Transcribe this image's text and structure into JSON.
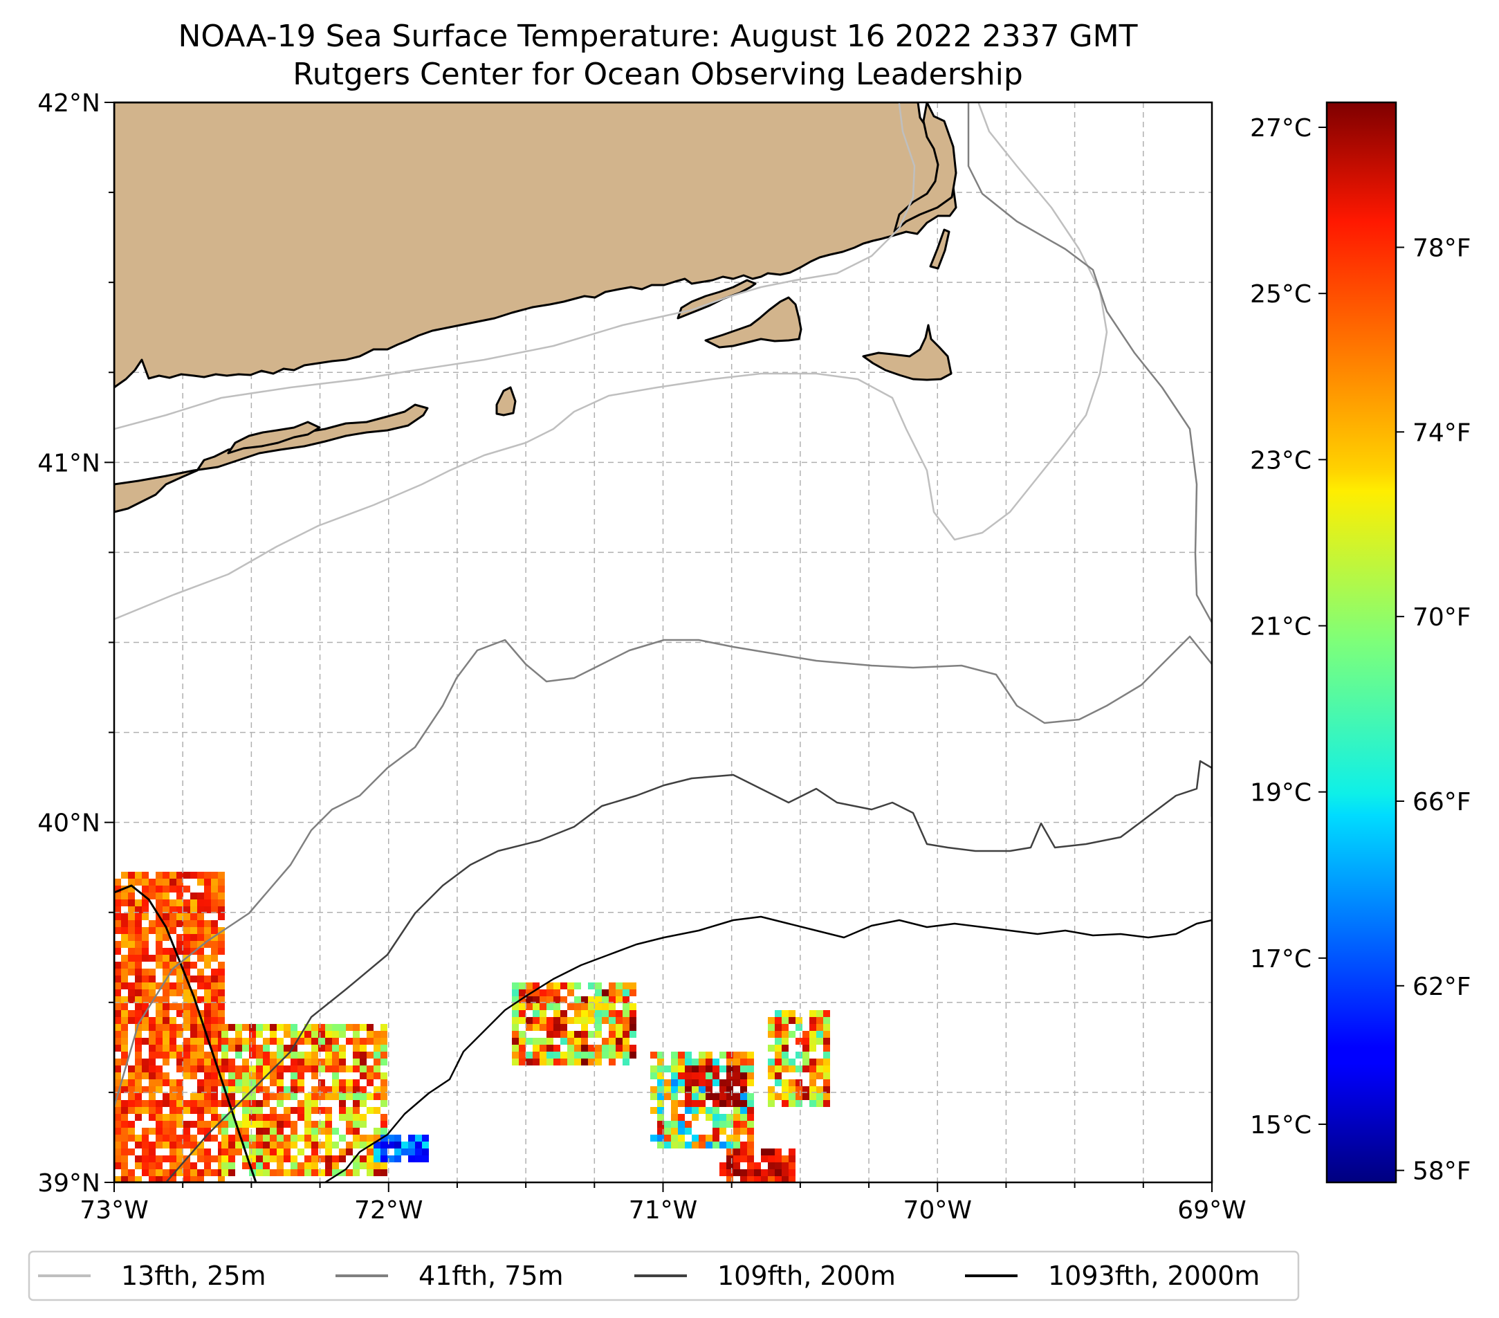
{
  "title": {
    "line1": "NOAA-19 Sea Surface Temperature: August 16 2022 2337 GMT",
    "line2": "Rutgers Center for Ocean Observing Leadership"
  },
  "map": {
    "extent": {
      "lon_min": -73,
      "lon_max": -69,
      "lat_min": 39,
      "lat_max": 42
    },
    "land_color": "#d2b48c",
    "gridlines": true,
    "lon_ticks": [
      {
        "value": -73,
        "label": "73°W"
      },
      {
        "value": -72,
        "label": "72°W"
      },
      {
        "value": -71,
        "label": "71°W"
      },
      {
        "value": -70,
        "label": "70°W"
      },
      {
        "value": -69,
        "label": "69°W"
      }
    ],
    "lat_ticks": [
      {
        "value": 42,
        "label": "42°N"
      },
      {
        "value": 41,
        "label": "41°N"
      },
      {
        "value": 40,
        "label": "40°N"
      },
      {
        "value": 39,
        "label": "39°N"
      }
    ]
  },
  "colorbar": {
    "colormap": "jet",
    "range_c": [
      14.3,
      27.3
    ],
    "celsius_ticks": [
      {
        "value": 15,
        "label": "15°C"
      },
      {
        "value": 17,
        "label": "17°C"
      },
      {
        "value": 19,
        "label": "19°C"
      },
      {
        "value": 21,
        "label": "21°C"
      },
      {
        "value": 23,
        "label": "23°C"
      },
      {
        "value": 25,
        "label": "25°C"
      },
      {
        "value": 27,
        "label": "27°C"
      }
    ],
    "fahrenheit_ticks": [
      {
        "value": 58,
        "label": "58°F"
      },
      {
        "value": 62,
        "label": "62°F"
      },
      {
        "value": 66,
        "label": "66°F"
      },
      {
        "value": 70,
        "label": "70°F"
      },
      {
        "value": 74,
        "label": "74°F"
      },
      {
        "value": 78,
        "label": "78°F"
      }
    ]
  },
  "legend": {
    "position": "bottom",
    "entries": [
      {
        "label": "13fth, 25m",
        "color": "#bfbfbf"
      },
      {
        "label": "41fth, 75m",
        "color": "#808080"
      },
      {
        "label": "109fth, 200m",
        "color": "#404040"
      },
      {
        "label": "1093fth, 2000m",
        "color": "#000000"
      }
    ]
  }
}
